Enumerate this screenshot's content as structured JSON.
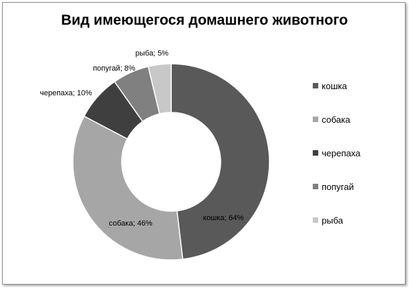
{
  "chart_data": {
    "type": "pie",
    "subtype": "doughnut",
    "title": "Вид имеющегося домашнего животного",
    "categories": [
      "кошка",
      "собака",
      "черепаха",
      "попугай",
      "рыба"
    ],
    "values": [
      64,
      46,
      10,
      8,
      5
    ],
    "data_labels": [
      "кошка; 64%",
      "собака; 46%",
      "черепаха; 10%",
      "попугай; 8%",
      "рыба; 5%"
    ],
    "colors": [
      "#595959",
      "#a6a6a6",
      "#3f3f3f",
      "#808080",
      "#c8c8c8"
    ],
    "legend": {
      "position": "right",
      "entries": [
        "кошка",
        "собака",
        "черепаха",
        "попугай",
        "рыба"
      ]
    }
  }
}
